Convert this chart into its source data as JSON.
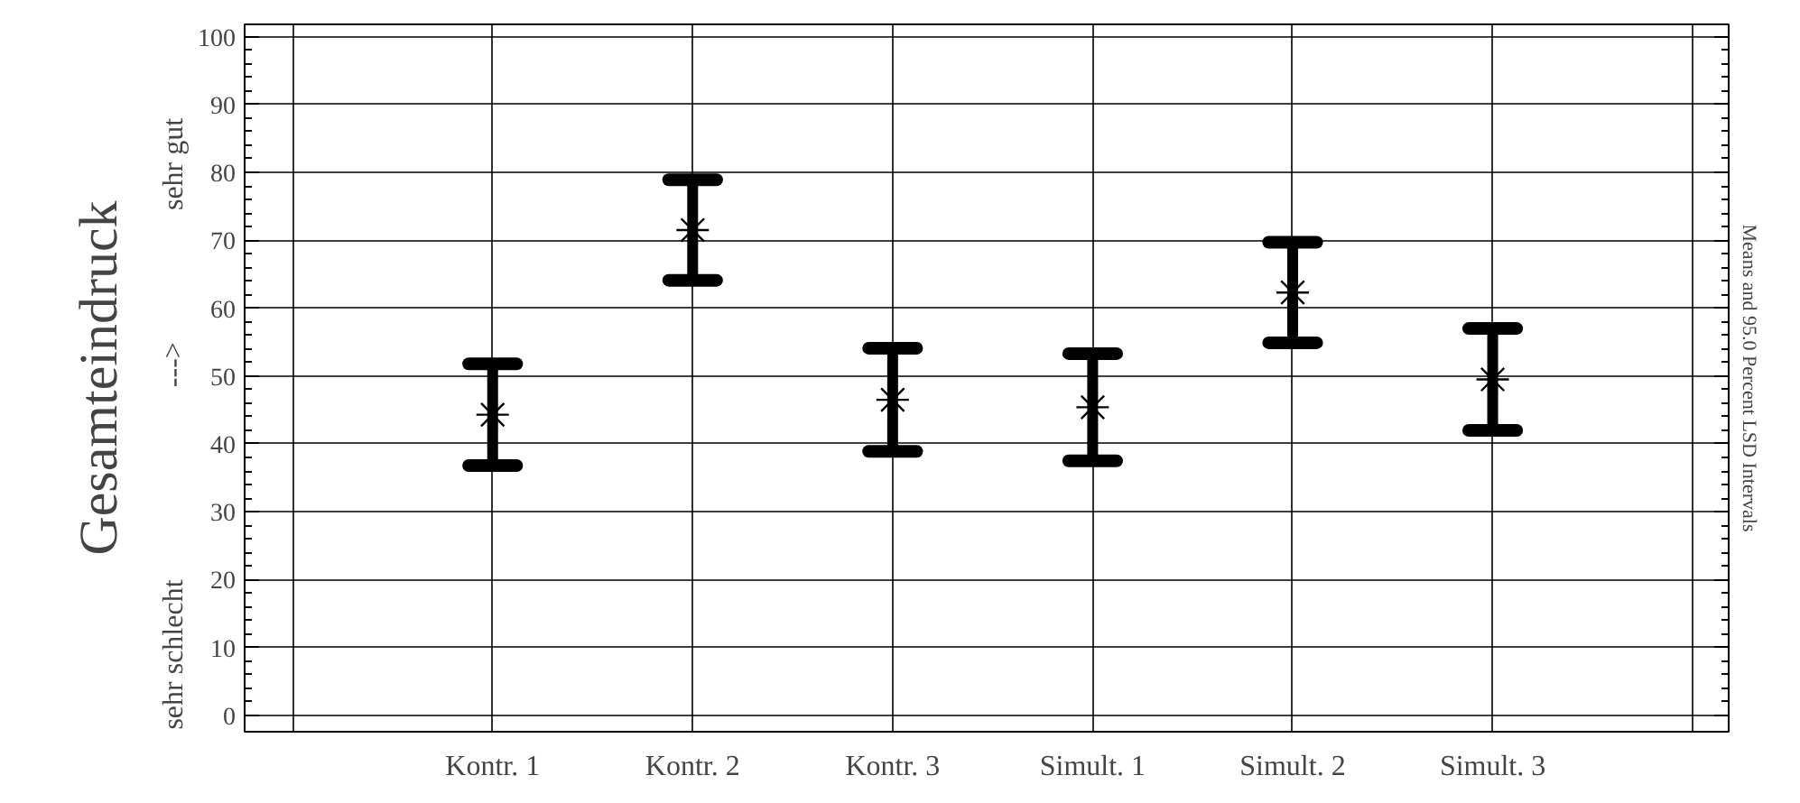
{
  "chart_data": {
    "type": "scatter",
    "ylabel": "Gesamteindruck",
    "categories": [
      "Kontr. 1",
      "Kontr. 2",
      "Kontr. 3",
      "Simult. 1",
      "Simult. 2",
      "Simult. 3"
    ],
    "values": [
      44.3,
      71.5,
      46.5,
      45.4,
      62.3,
      49.5
    ],
    "errors": [
      7.5,
      7.4,
      7.6,
      7.9,
      7.4,
      7.5
    ],
    "color": "#000000",
    "marker": "cross",
    "grid": true,
    "ylim": [
      -2.4,
      101.8
    ],
    "yticks": [
      0,
      10,
      20,
      30,
      40,
      50,
      60,
      70,
      80,
      90,
      100
    ],
    "annotations": [
      "sehr schlecht",
      "--->",
      "sehr gut",
      "Means and 95.0 Percent LSD Intervals"
    ]
  }
}
